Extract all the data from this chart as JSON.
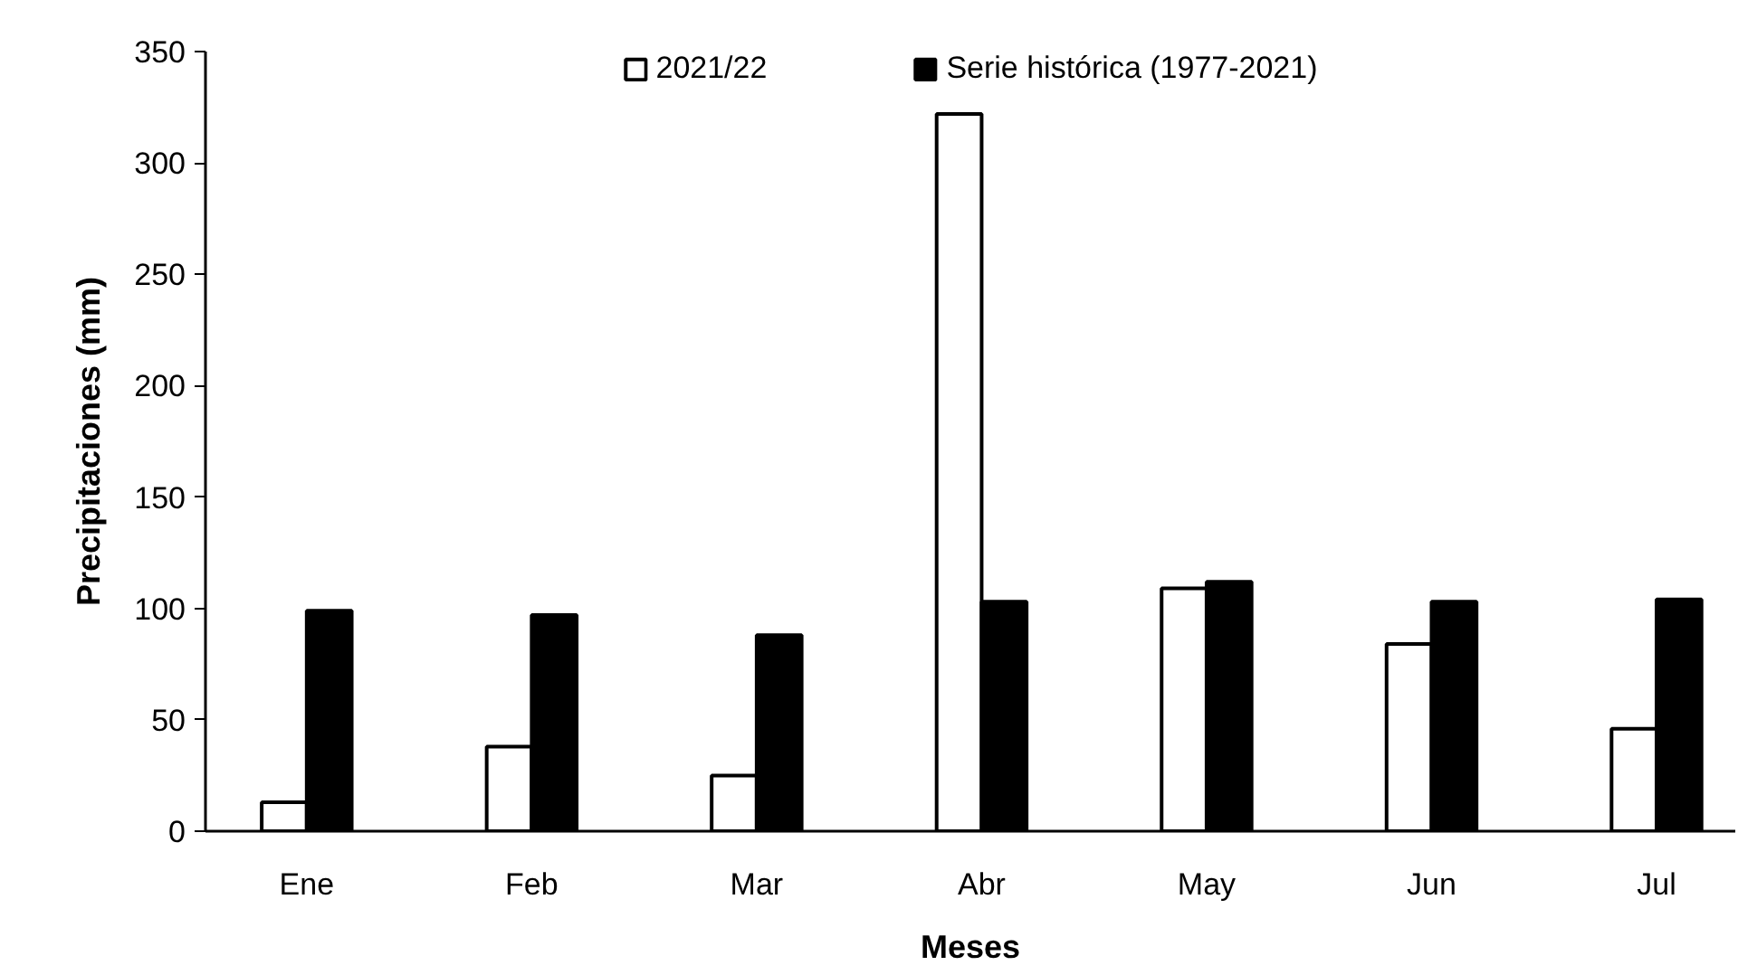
{
  "chart_data": {
    "type": "bar",
    "xlabel": "Meses",
    "ylabel": "Precipitaciones (mm)",
    "categories": [
      "Ene",
      "Feb",
      "Mar",
      "Abr",
      "May",
      "Jun",
      "Jul"
    ],
    "series": [
      {
        "name": "2021/22",
        "color": "#ffffff",
        "values": [
          13,
          38,
          25,
          322,
          109,
          84,
          46
        ]
      },
      {
        "name": "Serie histórica (1977-2021)",
        "color": "#000000",
        "values": [
          99,
          97,
          88,
          103,
          112,
          103,
          104
        ]
      }
    ],
    "ylim": [
      0,
      350
    ],
    "yticks": [
      0,
      50,
      100,
      150,
      200,
      250,
      300,
      350
    ],
    "grid": false,
    "legend": "top"
  }
}
